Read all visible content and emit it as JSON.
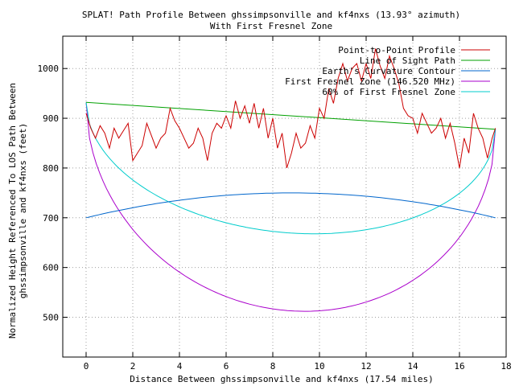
{
  "chart_data": {
    "type": "line",
    "title_line1": "SPLAT! Path Profile Between ghssimpsonville and kf4nxs (13.93° azimuth)",
    "title_line2": "With First Fresnel Zone",
    "xlabel": "Distance Between ghssimpsonville and kf4nxs (17.54 miles)",
    "ylabel_line1": "Normalized Height Referenced To LOS Path Between",
    "ylabel_line2": "ghssimpsonville and kf4nxs (feet)",
    "xlim": [
      -1,
      18
    ],
    "ylim": [
      420,
      1065
    ],
    "xticks": [
      0,
      2,
      4,
      6,
      8,
      10,
      12,
      14,
      16,
      18
    ],
    "yticks": [
      500,
      600,
      700,
      800,
      900,
      1000
    ],
    "grid": true,
    "legend_position": "top-right",
    "series": [
      {
        "name": "Point-to-Point Profile",
        "color": "#cc0000",
        "x": [
          0,
          0.2,
          0.4,
          0.6,
          0.8,
          1.0,
          1.2,
          1.4,
          1.6,
          1.8,
          2.0,
          2.2,
          2.4,
          2.6,
          2.8,
          3.0,
          3.2,
          3.4,
          3.6,
          3.8,
          4.0,
          4.2,
          4.4,
          4.6,
          4.8,
          5.0,
          5.2,
          5.4,
          5.6,
          5.8,
          6.0,
          6.2,
          6.4,
          6.6,
          6.8,
          7.0,
          7.2,
          7.4,
          7.6,
          7.8,
          8.0,
          8.2,
          8.4,
          8.6,
          8.8,
          9.0,
          9.2,
          9.4,
          9.6,
          9.8,
          10.0,
          10.2,
          10.4,
          10.6,
          10.8,
          11.0,
          11.2,
          11.4,
          11.6,
          11.8,
          12.0,
          12.2,
          12.4,
          12.6,
          12.8,
          13.0,
          13.2,
          13.4,
          13.6,
          13.8,
          14.0,
          14.2,
          14.4,
          14.6,
          14.8,
          15.0,
          15.2,
          15.4,
          15.6,
          15.8,
          16.0,
          16.2,
          16.4,
          16.6,
          16.8,
          17.0,
          17.2,
          17.4,
          17.54
        ],
        "y": [
          910,
          880,
          860,
          885,
          870,
          840,
          880,
          860,
          875,
          890,
          815,
          830,
          845,
          890,
          865,
          840,
          860,
          870,
          920,
          895,
          880,
          860,
          840,
          850,
          880,
          860,
          815,
          870,
          890,
          880,
          905,
          880,
          935,
          900,
          925,
          890,
          930,
          880,
          920,
          860,
          900,
          840,
          870,
          800,
          830,
          870,
          840,
          850,
          885,
          860,
          920,
          900,
          960,
          930,
          980,
          1010,
          975,
          1000,
          1010,
          975,
          1010,
          980,
          1040,
          1005,
          980,
          1025,
          1000,
          970,
          920,
          905,
          900,
          870,
          910,
          890,
          870,
          880,
          900,
          860,
          890,
          850,
          800,
          860,
          830,
          910,
          880,
          860,
          820,
          860,
          880
        ]
      },
      {
        "name": "Line of Sight Path",
        "color": "#00a000",
        "x": [
          0,
          17.54
        ],
        "y": [
          932,
          878
        ]
      },
      {
        "name": "Earth's Curvature Contour",
        "color": "#0066cc",
        "curve": "parabola",
        "x": [
          0,
          8.77,
          17.54
        ],
        "y": [
          700,
          750,
          700
        ]
      },
      {
        "name": "First Fresnel Zone (146.520 MHz)",
        "color": "#aa00cc",
        "curve": "ellipse",
        "x": [
          0,
          9.4,
          17.54
        ],
        "y": [
          932,
          512,
          878
        ]
      },
      {
        "name": "60% of First Fresnel Zone",
        "color": "#00cccc",
        "curve": "ellipse",
        "x": [
          0,
          9.4,
          17.54
        ],
        "y": [
          932,
          668,
          878
        ]
      }
    ]
  }
}
